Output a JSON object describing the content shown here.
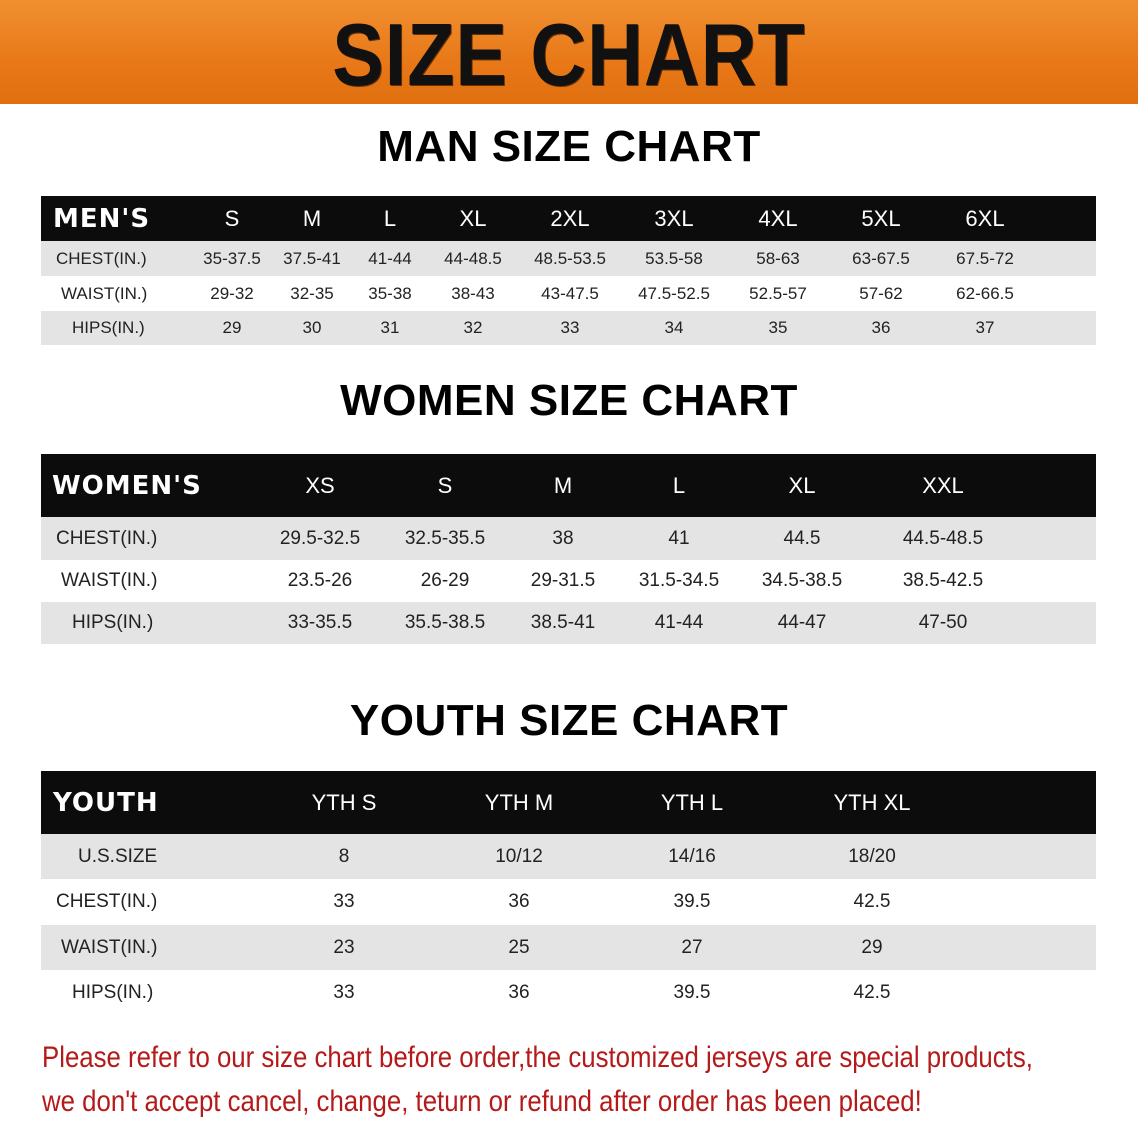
{
  "banner": {
    "title": "SIZE CHART",
    "color": "#e87818"
  },
  "note_color": "#b51a1a",
  "men": {
    "title": "MAN SIZE CHART",
    "header": "MEN'S",
    "sizes": [
      "S",
      "M",
      "L",
      "XL",
      "2XL",
      "3XL",
      "4XL",
      "5XL",
      "6XL"
    ],
    "rows": [
      {
        "label": "CHEST(IN.)",
        "values": [
          "35-37.5",
          "37.5-41",
          "41-44",
          "44-48.5",
          "48.5-53.5",
          "53.5-58",
          "58-63",
          "63-67.5",
          "67.5-72"
        ]
      },
      {
        "label": "WAIST(IN.)",
        "values": [
          "29-32",
          "32-35",
          "35-38",
          "38-43",
          "43-47.5",
          "47.5-52.5",
          "52.5-57",
          "57-62",
          "62-66.5"
        ]
      },
      {
        "label": "HIPS(IN.)",
        "values": [
          "29",
          "30",
          "31",
          "32",
          "33",
          "34",
          "35",
          "36",
          "37"
        ]
      }
    ]
  },
  "women": {
    "title": "WOMEN SIZE CHART",
    "header": "WOMEN'S",
    "sizes": [
      "XS",
      "S",
      "M",
      "L",
      "XL",
      "XXL"
    ],
    "rows": [
      {
        "label": "CHEST(IN.)",
        "values": [
          "29.5-32.5",
          "32.5-35.5",
          "38",
          "41",
          "44.5",
          "44.5-48.5"
        ]
      },
      {
        "label": "WAIST(IN.)",
        "values": [
          "23.5-26",
          "26-29",
          "29-31.5",
          "31.5-34.5",
          "34.5-38.5",
          "38.5-42.5"
        ]
      },
      {
        "label": "HIPS(IN.)",
        "values": [
          "33-35.5",
          "35.5-38.5",
          "38.5-41",
          "41-44",
          "44-47",
          "47-50"
        ]
      }
    ]
  },
  "youth": {
    "title": "YOUTH SIZE CHART",
    "header": "YOUTH",
    "sizes": [
      "YTH S",
      "YTH M",
      "YTH L",
      "YTH XL"
    ],
    "rows": [
      {
        "label": "U.S.SIZE",
        "values": [
          "8",
          "10/12",
          "14/16",
          "18/20"
        ]
      },
      {
        "label": "CHEST(IN.)",
        "values": [
          "33",
          "36",
          "39.5",
          "42.5"
        ]
      },
      {
        "label": "WAIST(IN.)",
        "values": [
          "23",
          "25",
          "27",
          "29"
        ]
      },
      {
        "label": "HIPS(IN.)",
        "values": [
          "33",
          "36",
          "39.5",
          "42.5"
        ]
      }
    ]
  },
  "note": {
    "line1": "Please refer to our size chart before order,the customized jerseys are special products,",
    "line2": "we don't accept cancel, change, teturn or refund after order has been placed!"
  }
}
